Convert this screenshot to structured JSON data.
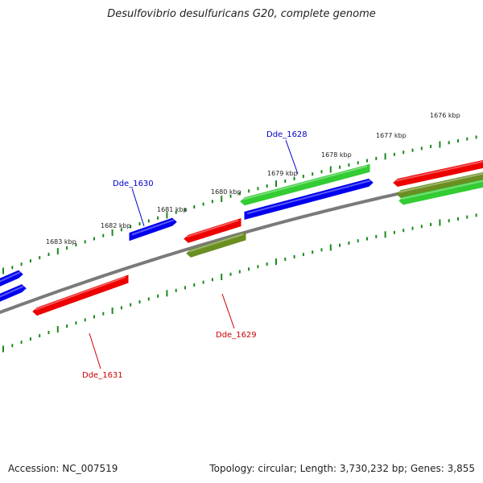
{
  "title": "Desulfovibrio desulfuricans G20, complete genome",
  "footer": {
    "accession": "Accession: NC_007519",
    "summary": "Topology: circular; Length: 3,730,232 bp; Genes: 3,855"
  },
  "colors": {
    "backbone": "#7a7a7a",
    "tick": "#1a8a1a",
    "forward_strand": "#0000ee",
    "reverse_strand": "#ee0000",
    "rna_or_other": "#33cc33",
    "pseudogene": "#6b8e23",
    "forward_label": "#0000cc",
    "reverse_label": "#cc0000"
  },
  "kbp_labels": [
    "1683 kbp",
    "1682 kbp",
    "1681 kbp",
    "1680 kbp",
    "1679 kbp",
    "1678 kbp",
    "1677 kbp",
    "1676 kbp"
  ],
  "gene_labels": {
    "dde_1628": "Dde_1628",
    "dde_1629": "Dde_1629",
    "dde_1630": "Dde_1630",
    "dde_1631": "Dde_1631"
  }
}
